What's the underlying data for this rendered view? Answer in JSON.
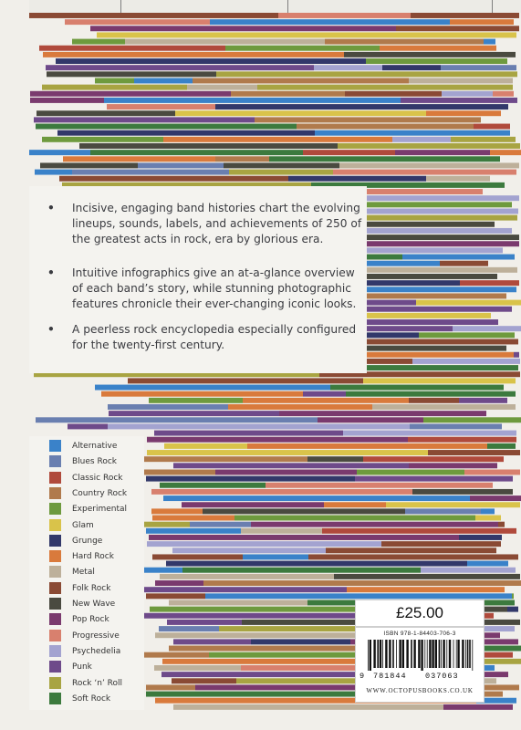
{
  "colors": {
    "background": "#f1efea",
    "alternative": "#3a82c9",
    "blues_rock": "#6a7fb0",
    "classic_rock": "#b04a3c",
    "country_rock": "#b07a4c",
    "experimental": "#6e9a3e",
    "glam": "#d9c34a",
    "grunge": "#32386a",
    "hard_rock": "#d97a3c",
    "metal": "#bdb09a",
    "folk_rock": "#8a4a34",
    "new_wave": "#4a4a40",
    "pop_rock": "#7a3a6e",
    "progressive": "#d8806e",
    "psychedelia": "#a3a3d0",
    "punk": "#6e4a8a",
    "rock_n_roll": "#a8a442",
    "soft_rock": "#3c7a3e"
  },
  "blurb": {
    "bullets": [
      {
        "marker": "•",
        "text": "Incisive, engaging band histories chart the evolving lineups, sounds, labels, and achievements of 250 of the greatest acts in rock, era by glorious era."
      },
      {
        "marker": "•",
        "text": "Intuitive infographics give an at-a-glance overview of each band’s story, while stunning photographic features chronicle their ever-changing iconic looks."
      },
      {
        "marker": "•",
        "text": "A peerless rock encyclopedia especially configured for the twenty-first century."
      }
    ]
  },
  "legend": {
    "items": [
      {
        "label": "Alternative",
        "color": "#3a82c9"
      },
      {
        "label": "Blues Rock",
        "color": "#6a7fb0"
      },
      {
        "label": "Classic Rock",
        "color": "#b04a3c"
      },
      {
        "label": "Country Rock",
        "color": "#b07a4c"
      },
      {
        "label": "Experimental",
        "color": "#6e9a3e"
      },
      {
        "label": "Glam",
        "color": "#d9c34a"
      },
      {
        "label": "Grunge",
        "color": "#32386a"
      },
      {
        "label": "Hard Rock",
        "color": "#d97a3c"
      },
      {
        "label": "Metal",
        "color": "#bdb09a"
      },
      {
        "label": "Folk Rock",
        "color": "#8a4a34"
      },
      {
        "label": "New Wave",
        "color": "#4a4a40"
      },
      {
        "label": "Pop Rock",
        "color": "#7a3a6e"
      },
      {
        "label": "Progressive",
        "color": "#d8806e"
      },
      {
        "label": "Psychedelia",
        "color": "#a3a3d0"
      },
      {
        "label": "Punk",
        "color": "#6e4a8a"
      },
      {
        "label": "Rock ‘n’ Roll",
        "color": "#a8a442"
      },
      {
        "label": "Soft Rock",
        "color": "#3c7a3e"
      }
    ]
  },
  "price": "£25.00",
  "isbn": "ISBN 978-1-84403-706-3",
  "barcode": {
    "first_digit": "9",
    "group_a": "781844",
    "group_b": "037063"
  },
  "website": "WWW.OCTOPUSBOOKS.CO.UK"
}
